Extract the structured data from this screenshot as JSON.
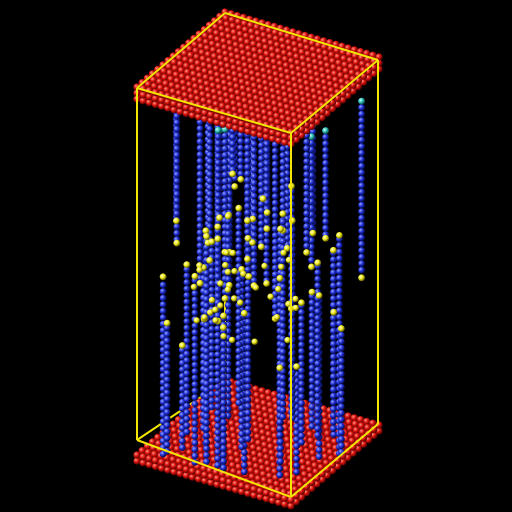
{
  "scene": {
    "background_color": "#000000",
    "box_edge_color": "#f2e600",
    "substrate_color": "#e0140f",
    "chain_color": "#1f2fd6",
    "end_bead_color": "#f2ec1a",
    "anchor_bead_color": "#2fc4b8",
    "plates": [
      "top-plate",
      "bottom-plate"
    ],
    "components": [
      "simulation-box",
      "top-plate",
      "bottom-plate",
      "polymer-brush-chains",
      "free-end-beads"
    ]
  }
}
